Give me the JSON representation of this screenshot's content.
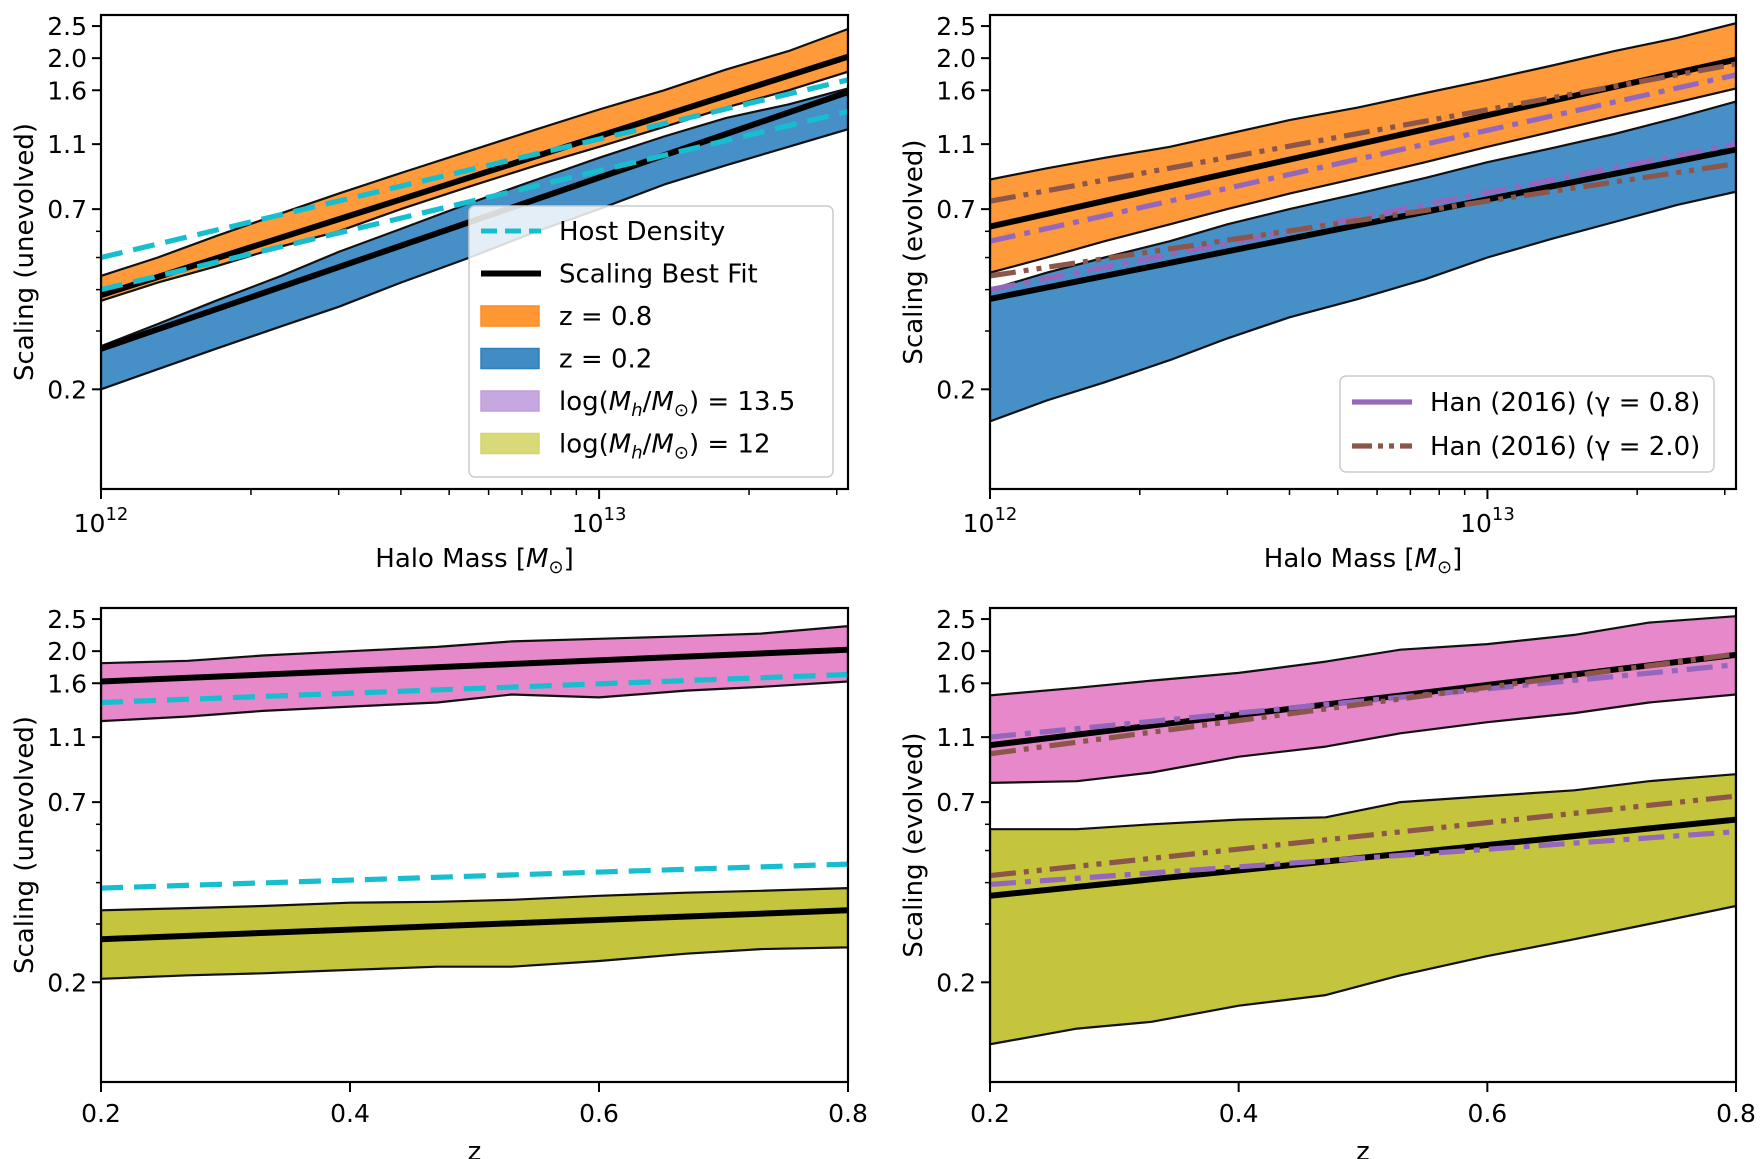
{
  "colors": {
    "orange": "#ff8c1f",
    "blue": "#2e7fbf",
    "pink": "#e377c2",
    "olive": "#bcbd22",
    "cyan": "#17becf",
    "purple": "#9467bd",
    "brown": "#8c564b",
    "black": "#000000"
  },
  "legend_upper_left": [
    {
      "label": "Host Density",
      "kind": "line",
      "color": "#17becf",
      "dash": "dashed"
    },
    {
      "label": "Scaling Best Fit",
      "kind": "line",
      "color": "#000000",
      "dash": "solid"
    },
    {
      "label": "z = 0.8",
      "kind": "patch",
      "color": "#ff8c1f"
    },
    {
      "label": "z = 0.2",
      "kind": "patch",
      "color": "#2e7fbf"
    },
    {
      "label": "log(M",
      "sub": "h",
      "mid": "/M",
      "sub2": "⊙",
      "tail": ") = 13.5",
      "kind": "patch",
      "color": "#c09ddc"
    },
    {
      "label": "log(M",
      "sub": "h",
      "mid": "/M",
      "sub2": "⊙",
      "tail": ") = 12",
      "kind": "patch",
      "color": "#d4d56a"
    }
  ],
  "legend_upper_right": [
    {
      "label": "Han (2016) (γ = 0.8)",
      "color": "#9467bd",
      "dash": "dashdot"
    },
    {
      "label": "Han (2016) (γ = 2.0)",
      "color": "#8c564b",
      "dash": "dashdotdot"
    }
  ],
  "chart_data": [
    {
      "id": "top-left",
      "type": "area",
      "xscale": "log",
      "yscale": "log",
      "xlim": [
        1000000000000.0,
        31600000000000.0
      ],
      "ylim": [
        0.1,
        2.7
      ],
      "xticks": [
        {
          "value": 1000000000000.0,
          "base": "10",
          "exp": "12"
        },
        {
          "value": 10000000000000.0,
          "base": "10",
          "exp": "13"
        }
      ],
      "yticks": [
        "0.2",
        "0.7",
        "1.1",
        "1.6",
        "2.0",
        "2.5"
      ],
      "xlabel": "Halo Mass [M⊙]",
      "ylabel": "Scaling (unevolved)",
      "x": [
        1000000000000.0,
        1300000000000.0,
        1700000000000.0,
        2300000000000.0,
        3000000000000.0,
        4000000000000.0,
        5500000000000.0,
        7500000000000.0,
        10000000000000.0,
        13500000000000.0,
        18000000000000.0,
        24000000000000.0,
        31600000000000.0
      ],
      "bands": [
        {
          "name": "z = 0.2",
          "color": "#2e7fbf",
          "lower": [
            0.2,
            0.23,
            0.265,
            0.31,
            0.355,
            0.42,
            0.5,
            0.6,
            0.7,
            0.83,
            0.95,
            1.08,
            1.22
          ],
          "upper": [
            0.27,
            0.315,
            0.37,
            0.44,
            0.52,
            0.61,
            0.73,
            0.86,
            1.0,
            1.16,
            1.32,
            1.45,
            1.62
          ]
        },
        {
          "name": "z = 0.8",
          "color": "#ff8c1f",
          "lower": [
            0.37,
            0.42,
            0.47,
            0.54,
            0.6,
            0.7,
            0.82,
            0.95,
            1.08,
            1.24,
            1.42,
            1.6,
            1.82
          ],
          "upper": [
            0.44,
            0.5,
            0.58,
            0.68,
            0.78,
            0.9,
            1.05,
            1.22,
            1.4,
            1.6,
            1.85,
            2.1,
            2.45
          ]
        }
      ],
      "lines": [
        {
          "kind": "fit",
          "color": "#000000",
          "dash": "solid",
          "x": [
            1000000000000.0,
            31600000000000.0
          ],
          "y": [
            0.265,
            1.58
          ]
        },
        {
          "kind": "fit",
          "color": "#000000",
          "dash": "solid",
          "x": [
            1000000000000.0,
            31600000000000.0
          ],
          "y": [
            0.385,
            2.02
          ]
        },
        {
          "kind": "host",
          "color": "#17becf",
          "dash": "dashed",
          "x": [
            1000000000000.0,
            31600000000000.0
          ],
          "y": [
            0.4,
            1.38
          ]
        },
        {
          "kind": "host",
          "color": "#17becf",
          "dash": "dashed",
          "x": [
            1000000000000.0,
            31600000000000.0
          ],
          "y": [
            0.5,
            1.72
          ]
        }
      ]
    },
    {
      "id": "top-right",
      "type": "area",
      "xscale": "log",
      "yscale": "log",
      "xlim": [
        1000000000000.0,
        31600000000000.0
      ],
      "ylim": [
        0.1,
        2.7
      ],
      "xticks": [
        {
          "value": 1000000000000.0,
          "base": "10",
          "exp": "12"
        },
        {
          "value": 10000000000000.0,
          "base": "10",
          "exp": "13"
        }
      ],
      "yticks": [
        "0.2",
        "0.7",
        "1.1",
        "1.6",
        "2.0",
        "2.5"
      ],
      "xlabel": "Halo Mass [M⊙]",
      "ylabel": "Scaling (evolved)",
      "x": [
        1000000000000.0,
        1300000000000.0,
        1700000000000.0,
        2300000000000.0,
        3000000000000.0,
        4000000000000.0,
        5500000000000.0,
        7500000000000.0,
        10000000000000.0,
        13500000000000.0,
        18000000000000.0,
        24000000000000.0,
        31600000000000.0
      ],
      "bands": [
        {
          "name": "z = 0.2",
          "color": "#2e7fbf",
          "lower": [
            0.16,
            0.185,
            0.21,
            0.245,
            0.285,
            0.33,
            0.375,
            0.43,
            0.5,
            0.57,
            0.64,
            0.72,
            0.79
          ],
          "upper": [
            0.4,
            0.45,
            0.5,
            0.56,
            0.63,
            0.7,
            0.78,
            0.87,
            0.97,
            1.07,
            1.18,
            1.32,
            1.48
          ]
        },
        {
          "name": "z = 0.8",
          "color": "#ff8c1f",
          "lower": [
            0.45,
            0.5,
            0.56,
            0.63,
            0.7,
            0.78,
            0.87,
            0.97,
            1.08,
            1.2,
            1.33,
            1.47,
            1.62
          ],
          "upper": [
            0.86,
            0.93,
            1.0,
            1.08,
            1.18,
            1.3,
            1.42,
            1.57,
            1.72,
            1.9,
            2.1,
            2.3,
            2.55
          ]
        }
      ],
      "lines": [
        {
          "kind": "fit",
          "color": "#000000",
          "dash": "solid",
          "x": [
            1000000000000.0,
            31600000000000.0
          ],
          "y": [
            0.375,
            1.06
          ]
        },
        {
          "kind": "fit",
          "color": "#000000",
          "dash": "solid",
          "x": [
            1000000000000.0,
            31600000000000.0
          ],
          "y": [
            0.62,
            1.98
          ]
        },
        {
          "kind": "han08",
          "color": "#9467bd",
          "dash": "dashdot",
          "x": [
            1000000000000.0,
            31600000000000.0
          ],
          "y": [
            0.4,
            1.1
          ]
        },
        {
          "kind": "han08",
          "color": "#9467bd",
          "dash": "dashdot",
          "x": [
            1000000000000.0,
            31600000000000.0
          ],
          "y": [
            0.56,
            1.78
          ]
        },
        {
          "kind": "han20",
          "color": "#8c564b",
          "dash": "dashdotdot",
          "x": [
            1000000000000.0,
            31600000000000.0
          ],
          "y": [
            0.44,
            0.96
          ]
        },
        {
          "kind": "han20",
          "color": "#8c564b",
          "dash": "dashdotdot",
          "x": [
            1000000000000.0,
            31600000000000.0
          ],
          "y": [
            0.74,
            1.92
          ]
        }
      ]
    },
    {
      "id": "bottom-left",
      "type": "area",
      "xscale": "linear",
      "yscale": "log",
      "xlim": [
        0.2,
        0.8
      ],
      "ylim": [
        0.1,
        2.7
      ],
      "xticks": [
        {
          "value": 0.2,
          "label": "0.2"
        },
        {
          "value": 0.4,
          "label": "0.4"
        },
        {
          "value": 0.6,
          "label": "0.6"
        },
        {
          "value": 0.8,
          "label": "0.8"
        }
      ],
      "yticks": [
        "0.2",
        "0.7",
        "1.1",
        "1.6",
        "2.0",
        "2.5"
      ],
      "xlabel": "z",
      "ylabel": "Scaling (unevolved)",
      "x": [
        0.2,
        0.27,
        0.33,
        0.4,
        0.47,
        0.53,
        0.6,
        0.67,
        0.73,
        0.8
      ],
      "bands": [
        {
          "name": "log(Mh/M⊙) = 13.5",
          "color": "#e377c2",
          "lower": [
            1.23,
            1.27,
            1.32,
            1.36,
            1.4,
            1.48,
            1.45,
            1.52,
            1.56,
            1.62
          ],
          "upper": [
            1.84,
            1.87,
            1.94,
            2.0,
            2.06,
            2.14,
            2.18,
            2.22,
            2.26,
            2.38
          ]
        },
        {
          "name": "log(Mh/M⊙) = 12",
          "color": "#bcbd22",
          "lower": [
            0.205,
            0.21,
            0.213,
            0.218,
            0.223,
            0.223,
            0.232,
            0.244,
            0.252,
            0.255
          ],
          "upper": [
            0.33,
            0.335,
            0.34,
            0.348,
            0.35,
            0.355,
            0.365,
            0.373,
            0.378,
            0.385
          ]
        }
      ],
      "lines": [
        {
          "kind": "fit",
          "color": "#000000",
          "dash": "solid",
          "x": [
            0.2,
            0.8
          ],
          "y": [
            0.27,
            0.33
          ]
        },
        {
          "kind": "fit",
          "color": "#000000",
          "dash": "solid",
          "x": [
            0.2,
            0.8
          ],
          "y": [
            1.62,
            2.02
          ]
        },
        {
          "kind": "host",
          "color": "#17becf",
          "dash": "dashed",
          "x": [
            0.2,
            0.8
          ],
          "y": [
            0.385,
            0.455
          ]
        },
        {
          "kind": "host",
          "color": "#17becf",
          "dash": "dashed",
          "x": [
            0.2,
            0.8
          ],
          "y": [
            1.4,
            1.7
          ]
        }
      ]
    },
    {
      "id": "bottom-right",
      "type": "area",
      "xscale": "linear",
      "yscale": "log",
      "xlim": [
        0.2,
        0.8
      ],
      "ylim": [
        0.1,
        2.7
      ],
      "xticks": [
        {
          "value": 0.2,
          "label": "0.2"
        },
        {
          "value": 0.4,
          "label": "0.4"
        },
        {
          "value": 0.6,
          "label": "0.6"
        },
        {
          "value": 0.8,
          "label": "0.8"
        }
      ],
      "yticks": [
        "0.2",
        "0.7",
        "1.1",
        "1.6",
        "2.0",
        "2.5"
      ],
      "xlabel": "z",
      "ylabel": "Scaling (evolved)",
      "x": [
        0.2,
        0.27,
        0.33,
        0.4,
        0.47,
        0.53,
        0.6,
        0.67,
        0.73,
        0.8
      ],
      "bands": [
        {
          "name": "log(Mh/M⊙) = 13.5",
          "color": "#e377c2",
          "lower": [
            0.8,
            0.81,
            0.86,
            0.96,
            1.03,
            1.13,
            1.22,
            1.3,
            1.4,
            1.48
          ],
          "upper": [
            1.47,
            1.55,
            1.63,
            1.72,
            1.86,
            2.02,
            2.1,
            2.24,
            2.44,
            2.55
          ]
        },
        {
          "name": "log(Mh/M⊙) = 12",
          "color": "#bcbd22",
          "lower": [
            0.13,
            0.145,
            0.152,
            0.17,
            0.183,
            0.21,
            0.24,
            0.27,
            0.3,
            0.34
          ],
          "upper": [
            0.58,
            0.58,
            0.6,
            0.62,
            0.63,
            0.7,
            0.73,
            0.76,
            0.81,
            0.85
          ]
        }
      ],
      "lines": [
        {
          "kind": "fit",
          "color": "#000000",
          "dash": "solid",
          "x": [
            0.2,
            0.8
          ],
          "y": [
            0.365,
            0.62
          ]
        },
        {
          "kind": "fit",
          "color": "#000000",
          "dash": "solid",
          "x": [
            0.2,
            0.8
          ],
          "y": [
            1.04,
            1.95
          ]
        },
        {
          "kind": "han08",
          "color": "#9467bd",
          "dash": "dashdot",
          "x": [
            0.2,
            0.8
          ],
          "y": [
            0.395,
            0.57
          ]
        },
        {
          "kind": "han08",
          "color": "#9467bd",
          "dash": "dashdot",
          "x": [
            0.2,
            0.8
          ],
          "y": [
            1.1,
            1.82
          ]
        },
        {
          "kind": "han20",
          "color": "#8c564b",
          "dash": "dashdotdot",
          "x": [
            0.2,
            0.8
          ],
          "y": [
            0.42,
            0.73
          ]
        },
        {
          "kind": "han20",
          "color": "#8c564b",
          "dash": "dashdotdot",
          "x": [
            0.2,
            0.8
          ],
          "y": [
            0.98,
            1.96
          ]
        }
      ]
    }
  ]
}
